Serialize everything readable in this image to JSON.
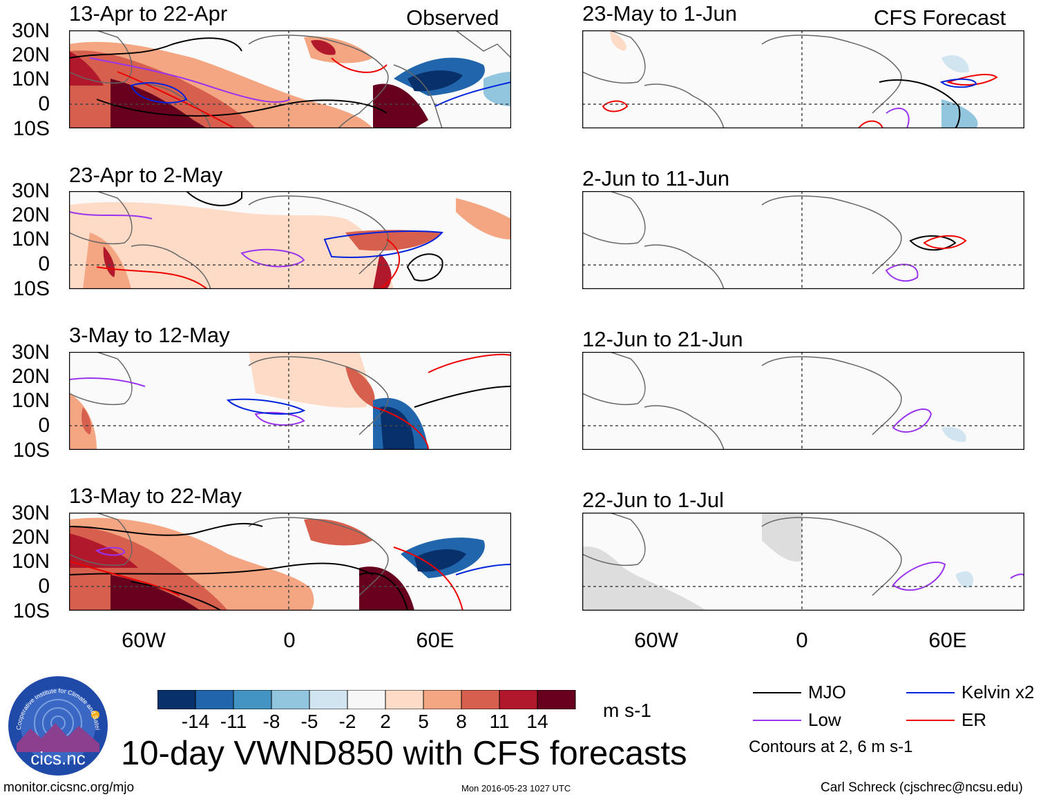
{
  "title": "10-day VWND850 with CFS forecasts",
  "observed_label": "Observed",
  "forecast_label": "CFS Forecast",
  "observed_panels": [
    {
      "period": "13-Apr to 22-Apr"
    },
    {
      "period": "23-Apr to 2-May"
    },
    {
      "period": "3-May to 12-May"
    },
    {
      "period": "13-May to 22-May"
    }
  ],
  "forecast_panels": [
    {
      "period": "23-May to 1-Jun"
    },
    {
      "period": "2-Jun to 11-Jun"
    },
    {
      "period": "12-Jun to 21-Jun"
    },
    {
      "period": "22-Jun to 1-Jul"
    }
  ],
  "lat_labels": [
    "30N",
    "20N",
    "10N",
    "0",
    "10S"
  ],
  "lon_labels": [
    "60W",
    "0",
    "60E"
  ],
  "colorbar": {
    "ticks": [
      "-14",
      "-11",
      "-8",
      "-5",
      "-2",
      "2",
      "5",
      "8",
      "11",
      "14"
    ],
    "units": "m s-1",
    "colors": [
      "#08306b",
      "#2166ac",
      "#4393c3",
      "#92c5de",
      "#d1e5f0",
      "#f7f7f7",
      "#fddbc7",
      "#f4a582",
      "#d6604d",
      "#b2182b",
      "#67001f"
    ]
  },
  "legend": {
    "items": [
      {
        "label": "MJO",
        "color": "#000000"
      },
      {
        "label": "Kelvin x2",
        "color": "#0022dd"
      },
      {
        "label": "Low",
        "color": "#9933ee"
      },
      {
        "label": "ER",
        "color": "#ee0000"
      }
    ],
    "contours_note": "Contours at 2, 6 m s-1"
  },
  "logo_text": "cics.nc",
  "logo_ring_text": "Cooperative Institute for Climate and Satellites",
  "footer": {
    "url": "monitor.cicsnc.org/mjo",
    "timestamp": "Mon 2016-05-23 1027 UTC",
    "author": "Carl Schreck (cjschrec@ncsu.edu)"
  }
}
